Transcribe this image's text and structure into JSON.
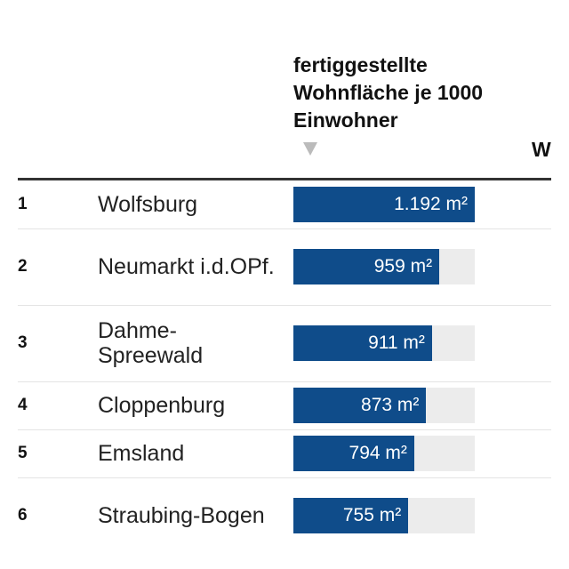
{
  "chart_data": {
    "type": "bar",
    "title": "fertiggestellte Wohnfläche je 1000 Einwohner",
    "next_column_header_partial": "W",
    "unit": "m²",
    "max": 1192,
    "rows": [
      {
        "rank": "1",
        "name": "Wolfsburg",
        "value": 1192,
        "label": "1.192 m²"
      },
      {
        "rank": "2",
        "name": "Neumarkt i.d.OPf.",
        "value": 959,
        "label": "959 m²"
      },
      {
        "rank": "3",
        "name": "Dahme-Spreewald",
        "value": 911,
        "label": "911 m²"
      },
      {
        "rank": "4",
        "name": "Cloppenburg",
        "value": 873,
        "label": "873 m²"
      },
      {
        "rank": "5",
        "name": "Emsland",
        "value": 794,
        "label": "794 m²"
      },
      {
        "rank": "6",
        "name": "Straubing-Bogen",
        "value": 755,
        "label": "755 m²"
      }
    ]
  },
  "colors": {
    "bar": "#0f4c8a",
    "track": "#ececec"
  }
}
